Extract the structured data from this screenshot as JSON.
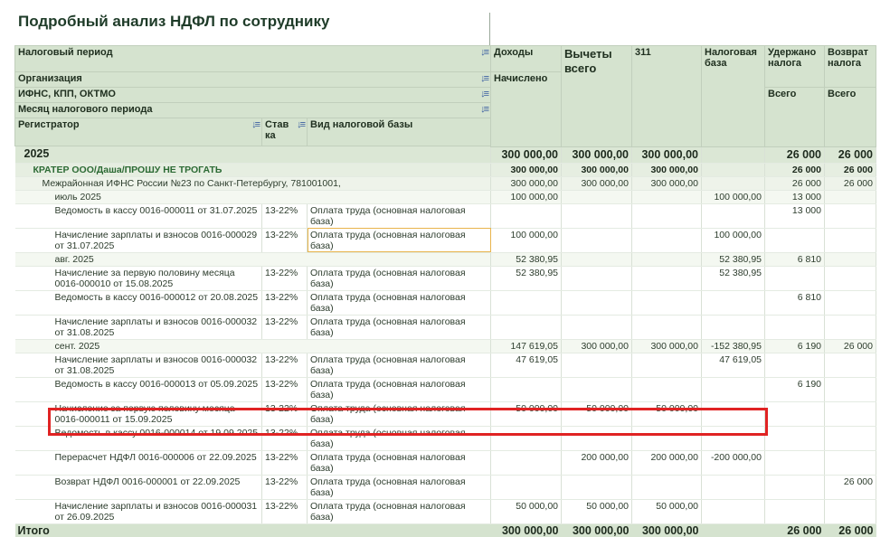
{
  "title": "Подробный анализ НДФЛ по сотруднику",
  "header": {
    "tax_period": "Налоговый период",
    "organization": "Организация",
    "ifns": "ИФНС, КПП, ОКТМО",
    "month": "Месяц налогового периода",
    "registrar": "Регистратор",
    "rate": "Став ка",
    "base_kind": "Вид налоговой базы",
    "income": "Доходы",
    "income_sub": "Начислено",
    "deductions": "Вычеты всего",
    "code311": "311",
    "tax_base": "Налоговая база",
    "withheld": "Удержано налога",
    "withheld_sub": "Всего",
    "refund": "Возврат налога",
    "refund_sub": "Всего",
    "sort_icon": "↓≡"
  },
  "rows": [
    {
      "level": 0,
      "name": "2025",
      "income": "300 000,00",
      "deductions": "300 000,00",
      "c311": "300 000,00",
      "tax_base": "",
      "withheld": "26 000",
      "refund": "26 000"
    },
    {
      "level": 1,
      "name": "КРАТЕР ООО/Даша/ПРОШУ НЕ ТРОГАТЬ",
      "income": "300 000,00",
      "deductions": "300 000,00",
      "c311": "300 000,00",
      "tax_base": "",
      "withheld": "26 000",
      "refund": "26 000"
    },
    {
      "level": 2,
      "name": "Межрайонная ИФНС России №23 по Санкт-Петербургу, 781001001,",
      "income": "300 000,00",
      "deductions": "300 000,00",
      "c311": "300 000,00",
      "tax_base": "",
      "withheld": "26 000",
      "refund": "26 000"
    },
    {
      "level": 3,
      "name": "июль 2025",
      "income": "100 000,00",
      "deductions": "",
      "c311": "",
      "tax_base": "100 000,00",
      "withheld": "13 000",
      "refund": ""
    },
    {
      "level": 4,
      "name": "Ведомость в кассу 0016-000011 от 31.07.2025",
      "rate": "13-22%",
      "base": "Оплата труда (основная налоговая база)",
      "income": "",
      "deductions": "",
      "c311": "",
      "tax_base": "",
      "withheld": "13 000",
      "refund": ""
    },
    {
      "level": 4,
      "name": "Начисление зарплаты и взносов 0016-000029 от 31.07.2025",
      "rate": "13-22%",
      "base": "Оплата труда (основная налоговая база)",
      "income": "100 000,00",
      "deductions": "",
      "c311": "",
      "tax_base": "100 000,00",
      "withheld": "",
      "refund": "",
      "focused": true
    },
    {
      "level": 3,
      "name": "авг. 2025",
      "income": "52 380,95",
      "deductions": "",
      "c311": "",
      "tax_base": "52 380,95",
      "withheld": "6 810",
      "refund": ""
    },
    {
      "level": 4,
      "name": "Начисление за первую половину месяца 0016-000010 от 15.08.2025",
      "rate": "13-22%",
      "base": "Оплата труда (основная налоговая база)",
      "income": "52 380,95",
      "deductions": "",
      "c311": "",
      "tax_base": "52 380,95",
      "withheld": "",
      "refund": ""
    },
    {
      "level": 4,
      "name": "Ведомость в кассу 0016-000012 от 20.08.2025",
      "rate": "13-22%",
      "base": "Оплата труда (основная налоговая база)",
      "income": "",
      "deductions": "",
      "c311": "",
      "tax_base": "",
      "withheld": "6 810",
      "refund": ""
    },
    {
      "level": 4,
      "name": "Начисление зарплаты и взносов 0016-000032 от 31.08.2025",
      "rate": "13-22%",
      "base": "Оплата труда (основная налоговая база)",
      "income": "",
      "deductions": "",
      "c311": "",
      "tax_base": "",
      "withheld": "",
      "refund": ""
    },
    {
      "level": 3,
      "name": "сент. 2025",
      "income": "147 619,05",
      "deductions": "300 000,00",
      "c311": "300 000,00",
      "tax_base": "-152 380,95",
      "withheld": "6 190",
      "refund": "26 000"
    },
    {
      "level": 4,
      "name": "Начисление зарплаты и взносов 0016-000032 от 31.08.2025",
      "rate": "13-22%",
      "base": "Оплата труда (основная налоговая база)",
      "income": "47 619,05",
      "deductions": "",
      "c311": "",
      "tax_base": "47 619,05",
      "withheld": "",
      "refund": ""
    },
    {
      "level": 4,
      "name": "Ведомость в кассу 0016-000013 от 05.09.2025",
      "rate": "13-22%",
      "base": "Оплата труда (основная налоговая база)",
      "income": "",
      "deductions": "",
      "c311": "",
      "tax_base": "",
      "withheld": "6 190",
      "refund": ""
    },
    {
      "level": 4,
      "name": "Начисление за первую половину месяца 0016-000011 от 15.09.2025",
      "rate": "13-22%",
      "base": "Оплата труда (основная налоговая база)",
      "income": "50 000,00",
      "deductions": "50 000,00",
      "c311": "50 000,00",
      "tax_base": "",
      "withheld": "",
      "refund": ""
    },
    {
      "level": 4,
      "name": "Ведомость в кассу 0016-000014 от 19.09.2025",
      "rate": "13-22%",
      "base": "Оплата труда (основная налоговая база)",
      "income": "",
      "deductions": "",
      "c311": "",
      "tax_base": "",
      "withheld": "",
      "refund": ""
    },
    {
      "level": 4,
      "name": "Перерасчет НДФЛ 0016-000006 от 22.09.2025",
      "rate": "13-22%",
      "base": "Оплата труда (основная налоговая база)",
      "income": "",
      "deductions": "200 000,00",
      "c311": "200 000,00",
      "tax_base": "-200 000,00",
      "withheld": "",
      "refund": ""
    },
    {
      "level": 4,
      "name": "Возврат НДФЛ 0016-000001 от 22.09.2025",
      "rate": "13-22%",
      "base": "Оплата труда (основная налоговая база)",
      "income": "",
      "deductions": "",
      "c311": "",
      "tax_base": "",
      "withheld": "",
      "refund": "26 000"
    },
    {
      "level": 4,
      "name": "Начисление зарплаты и взносов 0016-000031 от 26.09.2025",
      "rate": "13-22%",
      "base": "Оплата труда (основная налоговая база)",
      "income": "50 000,00",
      "deductions": "50 000,00",
      "c311": "50 000,00",
      "tax_base": "",
      "withheld": "",
      "refund": ""
    }
  ],
  "total": {
    "name": "Итого",
    "income": "300 000,00",
    "deductions": "300 000,00",
    "c311": "300 000,00",
    "tax_base": "",
    "withheld": "26 000",
    "refund": "26 000"
  },
  "colors": {
    "header_bg": "#d5e3cf",
    "highlight": "#e02323",
    "negative": "#d01818"
  }
}
